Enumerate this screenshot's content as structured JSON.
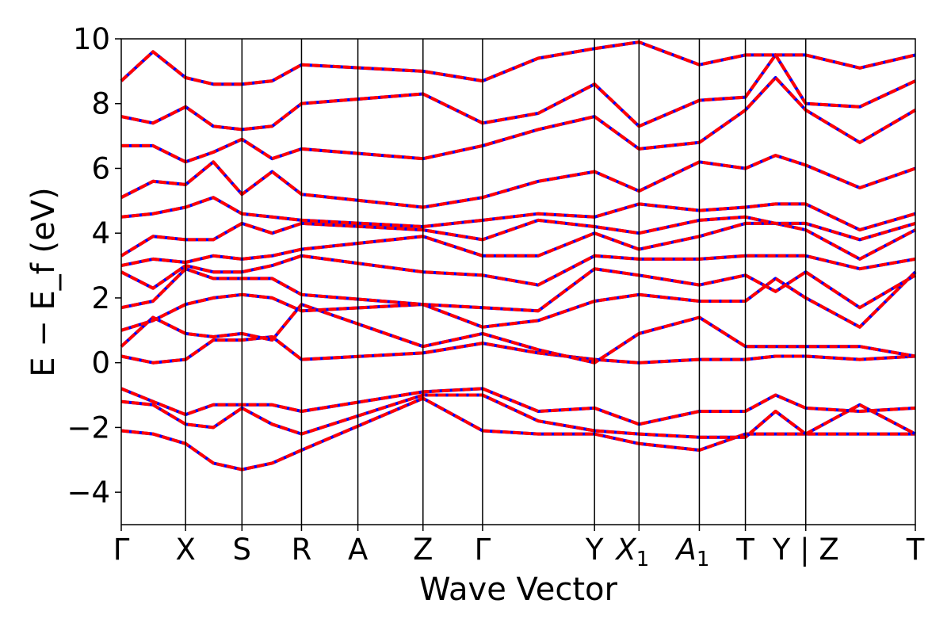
{
  "chart_data": {
    "type": "line",
    "title": "",
    "xlabel": "Wave Vector",
    "ylabel": "E − E_f (eV)",
    "ylim": [
      -5,
      10
    ],
    "yticks": [
      "10",
      "8",
      "6",
      "4",
      "2",
      "0",
      "−2",
      "−4"
    ],
    "ytick_values": [
      10,
      8,
      6,
      4,
      2,
      0,
      -2,
      -4
    ],
    "grid": false,
    "legend": "none",
    "kpoints": [
      {
        "label": "Γ",
        "sub": "",
        "italic": false,
        "x": 0.0
      },
      {
        "label": "X",
        "sub": "",
        "italic": false,
        "x": 0.081
      },
      {
        "label": "S",
        "sub": "",
        "italic": false,
        "x": 0.152
      },
      {
        "label": "R",
        "sub": "",
        "italic": false,
        "x": 0.227
      },
      {
        "label": "A",
        "sub": "",
        "italic": false,
        "x": 0.298
      },
      {
        "label": "Z",
        "sub": "",
        "italic": false,
        "x": 0.38
      },
      {
        "label": "Γ",
        "sub": "",
        "italic": false,
        "x": 0.455
      },
      {
        "label": "Y",
        "sub": "",
        "italic": false,
        "x": 0.596
      },
      {
        "label": "X",
        "sub": "1",
        "italic": true,
        "x": 0.652
      },
      {
        "label": "A",
        "sub": "1",
        "italic": true,
        "x": 0.728
      },
      {
        "label": "T",
        "sub": "",
        "italic": false,
        "x": 0.786
      },
      {
        "label": "Y | Z",
        "sub": "",
        "italic": false,
        "x": 0.862
      },
      {
        "label": "T",
        "sub": "",
        "italic": false,
        "x": 1.0
      }
    ],
    "series": [
      {
        "color": "#ff0000",
        "values": [
          [
            -2.1,
            -2.2,
            -2.5,
            -3.1,
            -3.3,
            -3.1,
            -2.7,
            -1.1,
            -2.1,
            -2.2,
            -2.2,
            -2.5,
            -2.7,
            -2.2,
            -2.2,
            -2.2,
            -2.2,
            -2.2
          ],
          [
            -1.2,
            -1.3,
            -1.9,
            -2.0,
            -1.4,
            -1.9,
            -2.2,
            -1.0,
            -1.0,
            -1.8,
            -2.1,
            -2.2,
            -2.3,
            -2.3,
            -1.5,
            -2.2,
            -1.3,
            -2.2
          ],
          [
            -0.8,
            -1.2,
            -1.6,
            -1.3,
            -1.3,
            -1.3,
            -1.5,
            -0.9,
            -0.8,
            -1.5,
            -1.4,
            -1.9,
            -1.5,
            -1.5,
            -1.0,
            -1.4,
            -1.5,
            -1.4
          ],
          [
            0.2,
            0.0,
            0.1,
            0.7,
            0.7,
            0.8,
            0.1,
            0.3,
            0.6,
            0.3,
            0.1,
            0.0,
            0.1,
            0.1,
            0.2,
            0.2,
            0.1,
            0.2
          ],
          [
            0.5,
            1.4,
            0.9,
            0.8,
            0.9,
            0.7,
            1.8,
            0.5,
            0.9,
            0.4,
            0.0,
            0.9,
            1.4,
            0.5,
            0.5,
            0.5,
            0.5,
            0.2
          ],
          [
            1.0,
            1.3,
            1.8,
            2.0,
            2.1,
            2.0,
            1.6,
            1.8,
            1.1,
            1.3,
            1.9,
            2.1,
            1.9,
            1.9,
            2.6,
            2.0,
            1.1,
            2.8
          ],
          [
            1.7,
            1.9,
            2.9,
            2.6,
            2.6,
            2.6,
            2.1,
            1.8,
            1.7,
            1.6,
            2.9,
            2.7,
            2.4,
            2.7,
            2.2,
            2.8,
            1.7,
            2.7
          ],
          [
            2.8,
            2.3,
            3.0,
            2.8,
            2.8,
            3.0,
            3.3,
            2.8,
            2.7,
            2.4,
            3.3,
            3.2,
            3.2,
            3.3,
            3.3,
            3.3,
            2.9,
            3.2
          ],
          [
            3.0,
            3.2,
            3.1,
            3.3,
            3.2,
            3.3,
            3.5,
            3.9,
            3.3,
            3.3,
            4.0,
            3.5,
            3.9,
            4.3,
            4.3,
            4.1,
            3.2,
            4.1
          ],
          [
            3.3,
            3.9,
            3.8,
            3.8,
            4.3,
            4.0,
            4.3,
            4.1,
            3.8,
            4.4,
            4.2,
            4.0,
            4.4,
            4.5,
            4.3,
            4.3,
            3.8,
            4.3
          ],
          [
            4.5,
            4.6,
            4.8,
            5.1,
            4.6,
            4.5,
            4.4,
            4.2,
            4.4,
            4.6,
            4.5,
            4.9,
            4.7,
            4.8,
            4.9,
            4.9,
            4.1,
            4.6
          ],
          [
            5.1,
            5.6,
            5.5,
            6.2,
            5.2,
            5.9,
            5.2,
            4.8,
            5.1,
            5.6,
            5.9,
            5.3,
            6.2,
            6.0,
            6.4,
            6.1,
            5.4,
            6.0
          ],
          [
            6.7,
            6.7,
            6.2,
            6.5,
            6.9,
            6.3,
            6.6,
            6.3,
            6.7,
            7.2,
            7.6,
            6.6,
            6.8,
            7.8,
            8.8,
            7.8,
            6.8,
            7.8
          ],
          [
            7.6,
            7.4,
            7.9,
            7.3,
            7.2,
            7.3,
            8.0,
            8.3,
            7.4,
            7.7,
            8.6,
            7.3,
            8.1,
            8.2,
            9.5,
            8.0,
            7.9,
            8.7
          ],
          [
            8.7,
            9.6,
            8.8,
            8.6,
            8.6,
            8.7,
            9.2,
            9.0,
            8.7,
            9.4,
            9.7,
            9.9,
            9.2,
            9.5,
            9.5,
            9.5,
            9.1,
            9.5
          ]
        ]
      },
      {
        "color": "#0000ff",
        "style": "dashed",
        "values": "identical to red series (overlaid)"
      }
    ],
    "xgrid": [
      0.0,
      0.04,
      0.081,
      0.116,
      0.152,
      0.19,
      0.227,
      0.38,
      0.455,
      0.525,
      0.596,
      0.652,
      0.728,
      0.786,
      0.824,
      0.862,
      0.93,
      1.0
    ]
  }
}
